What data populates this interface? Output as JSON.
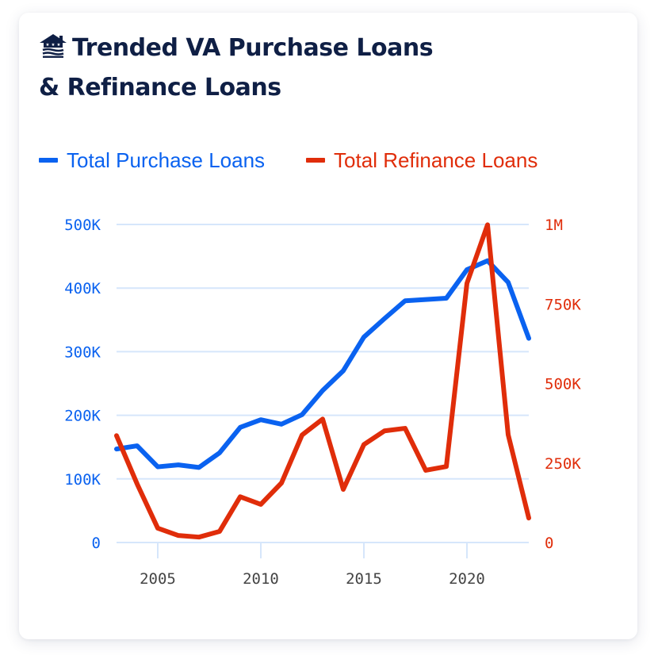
{
  "card": {
    "title": "Trended VA Purchase Loans & Refinance Loans",
    "title_line1": "Trended VA Purchase Loans",
    "title_line2": "& Refinance Loans",
    "icon": "house-flag-logo-icon"
  },
  "legend": [
    {
      "label": "Total Purchase Loans",
      "color": "#0a62f0"
    },
    {
      "label": "Total Refinance Loans",
      "color": "#e02d0a"
    }
  ],
  "colors": {
    "purchase": "#0a62f0",
    "refinance": "#e02d0a",
    "grid": "#d6e6fb",
    "title": "#0f1f45",
    "x_tick": "#444444"
  },
  "chart_data": {
    "type": "line",
    "title": "Trended VA Purchase Loans & Refinance Loans",
    "xlabel": "",
    "ylabel": "",
    "x": [
      2003,
      2004,
      2005,
      2006,
      2007,
      2008,
      2009,
      2010,
      2011,
      2012,
      2013,
      2014,
      2015,
      2016,
      2017,
      2018,
      2019,
      2020,
      2021,
      2022,
      2023
    ],
    "series": [
      {
        "name": "Total Purchase Loans",
        "axis": "left",
        "color": "#0a62f0",
        "values": [
          147000,
          152000,
          119000,
          122000,
          118000,
          141000,
          181000,
          193000,
          186000,
          201000,
          239000,
          270000,
          323000,
          352000,
          380000,
          382000,
          384000,
          429000,
          443000,
          409000,
          321000
        ]
      },
      {
        "name": "Total Refinance Loans",
        "axis": "right",
        "color": "#e02d0a",
        "values": [
          336000,
          184000,
          45000,
          22000,
          17000,
          35000,
          144000,
          120000,
          187000,
          338000,
          388000,
          167000,
          308000,
          351000,
          359000,
          227000,
          239000,
          815000,
          999000,
          339000,
          77000
        ]
      }
    ],
    "y_left": {
      "ticks": [
        0,
        100000,
        200000,
        300000,
        400000,
        500000
      ],
      "tick_labels": [
        "0",
        "100K",
        "200K",
        "300K",
        "400K",
        "500K"
      ],
      "range": [
        0,
        500000
      ]
    },
    "y_right": {
      "ticks": [
        0,
        250000,
        500000,
        750000,
        1000000
      ],
      "tick_labels": [
        "0",
        "250K",
        "500K",
        "750K",
        "1M"
      ],
      "range": [
        0,
        1000000
      ]
    },
    "x_ticks": [
      2005,
      2010,
      2015,
      2020
    ],
    "x_tick_labels": [
      "2005",
      "2010",
      "2015",
      "2020"
    ],
    "x_range": [
      2003,
      2023
    ],
    "grid": true,
    "legend_position": "top"
  }
}
